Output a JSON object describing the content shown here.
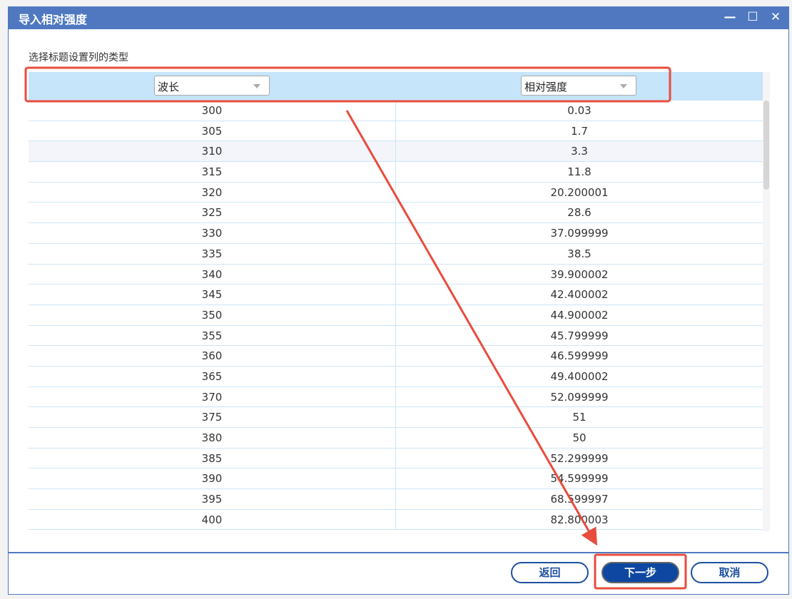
{
  "window": {
    "title": "导入相对强度",
    "minimize_icon": "minimize-icon",
    "maximize_icon": "maximize-icon",
    "close_icon": "close-icon"
  },
  "instruction": "选择标题设置列的类型",
  "columns": [
    {
      "type": "波长"
    },
    {
      "type": "相对强度"
    }
  ],
  "rows": [
    [
      "300",
      "0.03"
    ],
    [
      "305",
      "1.7"
    ],
    [
      "310",
      "3.3"
    ],
    [
      "315",
      "11.8"
    ],
    [
      "320",
      "20.200001"
    ],
    [
      "325",
      "28.6"
    ],
    [
      "330",
      "37.099999"
    ],
    [
      "335",
      "38.5"
    ],
    [
      "340",
      "39.900002"
    ],
    [
      "345",
      "42.400002"
    ],
    [
      "350",
      "44.900002"
    ],
    [
      "355",
      "45.799999"
    ],
    [
      "360",
      "46.599999"
    ],
    [
      "365",
      "49.400002"
    ],
    [
      "370",
      "52.099999"
    ],
    [
      "375",
      "51"
    ],
    [
      "380",
      "50"
    ],
    [
      "385",
      "52.299999"
    ],
    [
      "390",
      "54.599999"
    ],
    [
      "395",
      "68.599997"
    ],
    [
      "400",
      "82.800003"
    ]
  ],
  "buttons": {
    "back": "返回",
    "next": "下一步",
    "cancel": "取消"
  },
  "colors": {
    "titlebar": "#4f78c0",
    "header_row": "#c6e4fa",
    "primary_button": "#0d47a1",
    "annotation": "#e84c3d"
  }
}
